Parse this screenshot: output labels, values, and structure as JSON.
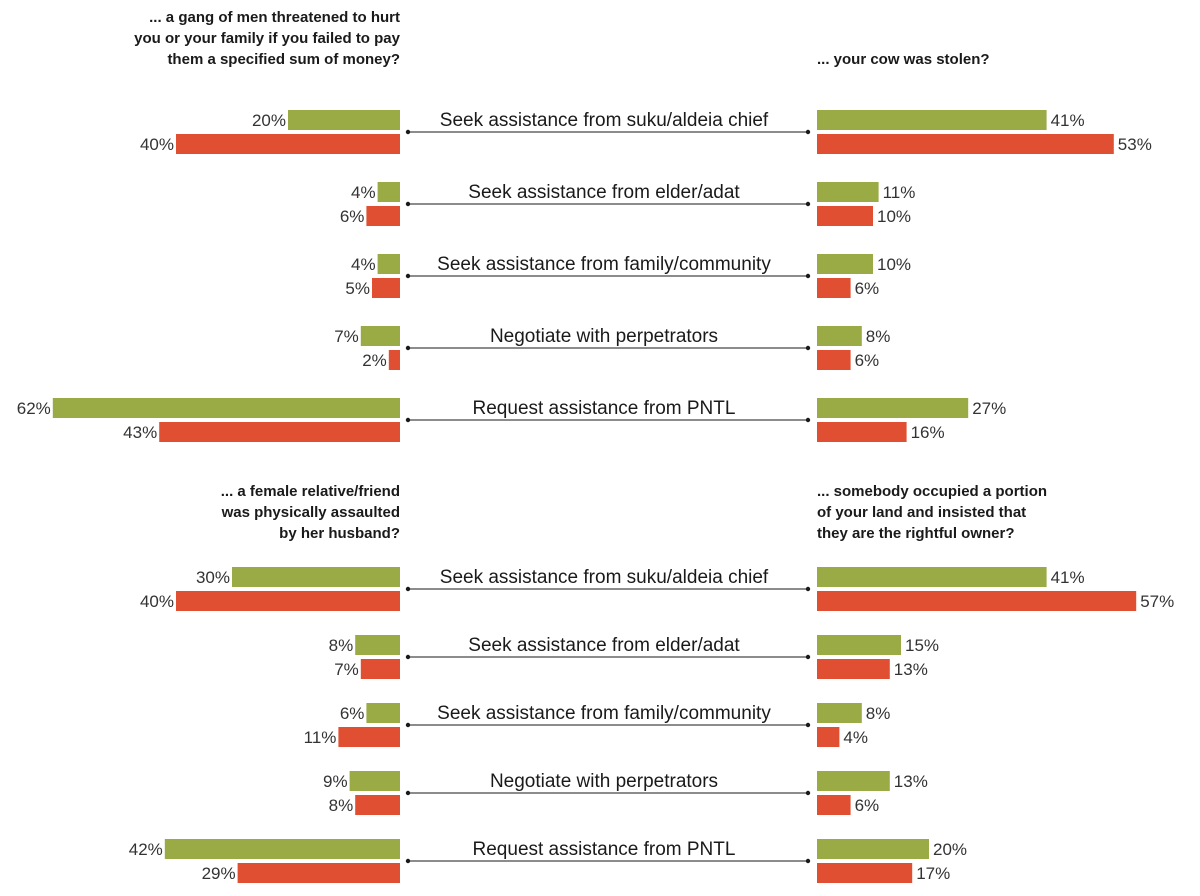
{
  "colors": {
    "green": "#9aab45",
    "red": "#e04f32"
  },
  "chart_data": [
    {
      "type": "bar",
      "block": "top",
      "left_question": [
        "... a gang of men threatened to hurt",
        "you or your family if you failed to pay",
        "them a specified sum of money?"
      ],
      "right_question": [
        "... your cow was stolen?"
      ],
      "categories": [
        "Seek assistance from suku/aldeia chief",
        "Seek assistance from elder/adat",
        "Seek assistance from family/community",
        "Negotiate with perpetrators",
        "Request assistance from PNTL"
      ],
      "left_series": [
        {
          "color": "green",
          "values": [
            20,
            4,
            4,
            7,
            62
          ]
        },
        {
          "color": "red",
          "values": [
            40,
            6,
            5,
            2,
            43
          ]
        }
      ],
      "right_series": [
        {
          "color": "green",
          "values": [
            41,
            11,
            10,
            8,
            27
          ]
        },
        {
          "color": "red",
          "values": [
            53,
            10,
            6,
            6,
            16
          ]
        }
      ]
    },
    {
      "type": "bar",
      "block": "bottom",
      "left_question": [
        "... a female relative/friend",
        "was physically assaulted",
        "by her husband?"
      ],
      "right_question": [
        "... somebody occupied a portion",
        "of your land and insisted that",
        "they are the rightful owner?"
      ],
      "categories": [
        "Seek assistance from suku/aldeia chief",
        "Seek assistance from elder/adat",
        "Seek assistance from family/community",
        "Negotiate with perpetrators",
        "Request assistance from PNTL"
      ],
      "left_series": [
        {
          "color": "green",
          "values": [
            30,
            8,
            6,
            9,
            42
          ]
        },
        {
          "color": "red",
          "values": [
            40,
            7,
            11,
            8,
            29
          ]
        }
      ],
      "right_series": [
        {
          "color": "green",
          "values": [
            41,
            15,
            8,
            13,
            20
          ]
        },
        {
          "color": "red",
          "values": [
            57,
            13,
            4,
            6,
            17
          ]
        }
      ]
    }
  ]
}
